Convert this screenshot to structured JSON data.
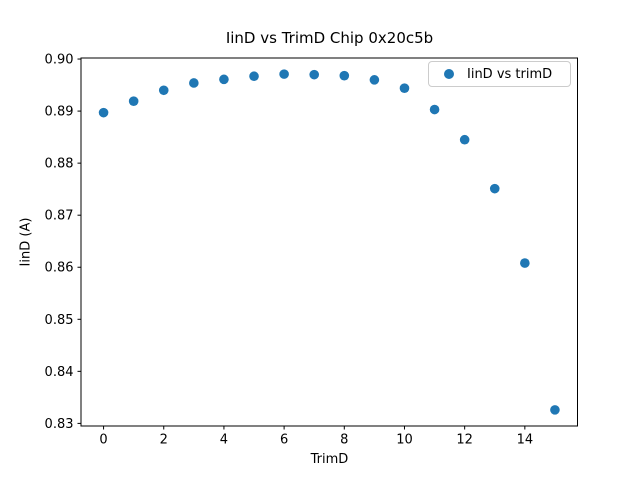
{
  "figure": {
    "background": "#ffffff",
    "axes_edge_color": "#000000",
    "text_color": "#000000"
  },
  "chart_data": {
    "type": "scatter",
    "title": "IinD vs TrimD Chip 0x20c5b",
    "xlabel": "TrimD",
    "ylabel": "IinD (A)",
    "series": [
      {
        "name": "IinD vs trimD",
        "color": "#1f77b4",
        "x": [
          0,
          1,
          2,
          3,
          4,
          5,
          6,
          7,
          8,
          9,
          10,
          11,
          12,
          13,
          14,
          15
        ],
        "y": [
          0.8897,
          0.8919,
          0.894,
          0.8954,
          0.8961,
          0.8967,
          0.8971,
          0.897,
          0.8968,
          0.896,
          0.8944,
          0.8903,
          0.8845,
          0.8751,
          0.8608,
          0.8326
        ]
      }
    ],
    "xlim": [
      -0.75,
      15.75
    ],
    "ylim": [
      0.8295,
      0.9002
    ],
    "xticks": [
      0,
      2,
      4,
      6,
      8,
      10,
      12,
      14
    ],
    "yticks": [
      0.83,
      0.84,
      0.85,
      0.86,
      0.87,
      0.88,
      0.89,
      0.9
    ],
    "ytick_decimals": 2,
    "grid": false,
    "legend": {
      "label": "IinD vs trimD",
      "position": "upper right",
      "border_color": "#cccccc",
      "marker_color": "#1f77b4"
    }
  }
}
